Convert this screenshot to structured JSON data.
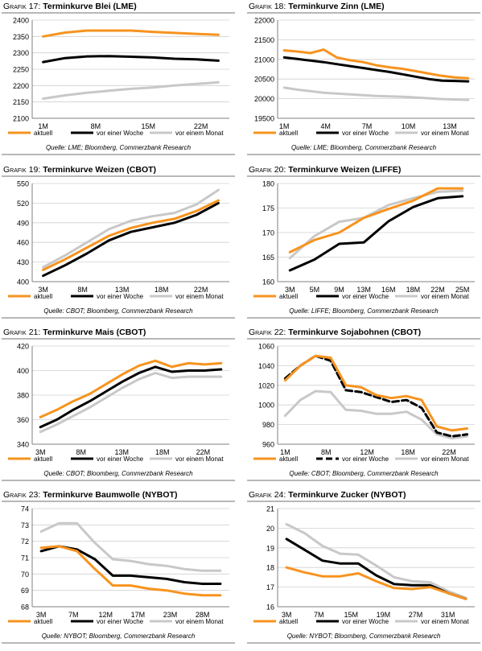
{
  "colors": {
    "aktuell": "#f7931e",
    "woche": "#000000",
    "monat": "#c8c8c8",
    "border": "#b8b8b8"
  },
  "charts": [
    {
      "prefix": "Grafik 17:",
      "title": "Terminkurve Blei (LME)",
      "source": "Quelle: LME; Bloomberg, Commerzbank Research",
      "chart_data": {
        "type": "line",
        "x_ticks": [
          "1M",
          "8M",
          "15M",
          "22M"
        ],
        "n": 9,
        "yticks": [
          2100,
          2150,
          2200,
          2250,
          2300,
          2350,
          2400
        ],
        "ylim": [
          2100,
          2400
        ],
        "series": [
          {
            "name": "aktuell",
            "style": "solid",
            "color": "#f7931e",
            "values": [
              2350,
              2362,
              2368,
              2368,
              2368,
              2364,
              2361,
              2358,
              2355
            ]
          },
          {
            "name": "vor einer Woche",
            "style": "solid",
            "color": "#000000",
            "values": [
              2272,
              2284,
              2289,
              2290,
              2288,
              2286,
              2282,
              2280,
              2276
            ]
          },
          {
            "name": "vor einem Monat",
            "style": "solid",
            "color": "#c8c8c8",
            "values": [
              2160,
              2170,
              2178,
              2184,
              2190,
              2194,
              2200,
              2205,
              2210
            ]
          }
        ]
      }
    },
    {
      "prefix": "Grafik 18:",
      "title": "Terminkurve Zinn (LME)",
      "source": "Quelle: LME; Bloomberg, Commerzbank Research",
      "chart_data": {
        "type": "line",
        "x_ticks": [
          "1M",
          "4M",
          "7M",
          "10M",
          "13M"
        ],
        "n": 15,
        "yticks": [
          19500,
          20000,
          20500,
          21000,
          21500,
          22000
        ],
        "ylim": [
          19500,
          22000
        ],
        "series": [
          {
            "name": "aktuell",
            "style": "solid",
            "color": "#f7931e",
            "values": [
              21230,
              21200,
              21160,
              21250,
              21050,
              20980,
              20930,
              20850,
              20800,
              20760,
              20700,
              20640,
              20580,
              20540,
              20520
            ]
          },
          {
            "name": "vor einer Woche",
            "style": "solid",
            "color": "#000000",
            "values": [
              21050,
              21010,
              20970,
              20930,
              20880,
              20830,
              20780,
              20730,
              20680,
              20620,
              20560,
              20500,
              20460,
              20450,
              20440
            ]
          },
          {
            "name": "vor einem Monat",
            "style": "solid",
            "color": "#c8c8c8",
            "values": [
              20280,
              20230,
              20190,
              20150,
              20130,
              20110,
              20090,
              20070,
              20060,
              20050,
              20030,
              20010,
              19990,
              19980,
              19970
            ]
          }
        ]
      }
    },
    {
      "prefix": "Grafik 19:",
      "title": "Terminkurve Weizen (CBOT)",
      "source": "Quelle: CBOT; Bloomberg, Commerzbank Research",
      "chart_data": {
        "type": "line",
        "x_ticks": [
          "3M",
          "8M",
          "13M",
          "18M",
          "22M"
        ],
        "n": 9,
        "yticks": [
          400,
          430,
          460,
          490,
          520,
          550
        ],
        "ylim": [
          400,
          550
        ],
        "series": [
          {
            "name": "aktuell",
            "style": "solid",
            "color": "#f7931e",
            "values": [
              418,
              434,
              452,
              470,
              482,
              490,
              496,
              508,
              524
            ]
          },
          {
            "name": "vor einer Woche",
            "style": "solid",
            "color": "#000000",
            "values": [
              409,
              425,
              443,
              463,
              476,
              483,
              490,
              502,
              520
            ]
          },
          {
            "name": "vor einem Monat",
            "style": "solid",
            "color": "#c8c8c8",
            "values": [
              422,
              440,
              460,
              480,
              493,
              500,
              505,
              518,
              540
            ]
          }
        ]
      }
    },
    {
      "prefix": "Grafik 20:",
      "title": "Terminkurve Weizen (LIFFE)",
      "source": "Quelle: LIFFE; Bloomberg, Commerzbank Research",
      "chart_data": {
        "type": "line",
        "x_ticks": [
          "3M",
          "5M",
          "9M",
          "13M",
          "16M",
          "18M",
          "22M",
          "25M"
        ],
        "n": 8,
        "yticks": [
          160,
          165,
          170,
          175,
          180
        ],
        "ylim": [
          160,
          180
        ],
        "series": [
          {
            "name": "aktuell",
            "style": "solid",
            "color": "#f7931e",
            "values": [
              166,
              168.5,
              170,
              173,
              174.8,
              176.5,
              179,
              179
            ]
          },
          {
            "name": "vor einer Woche",
            "style": "solid",
            "color": "#000000",
            "values": [
              162.3,
              164.5,
              167.7,
              168,
              172.3,
              175.2,
              177,
              177.4
            ]
          },
          {
            "name": "vor einem Monat",
            "style": "solid",
            "color": "#c8c8c8",
            "values": [
              164.8,
              169.3,
              172.2,
              173,
              175.6,
              177,
              178.3,
              178.5
            ]
          }
        ]
      }
    },
    {
      "prefix": "Grafik 21:",
      "title": "Terminkurve Mais (CBOT)",
      "source": "Quelle: CBOT; Bloomberg, Commerzbank Research",
      "chart_data": {
        "type": "line",
        "x_ticks": [
          "3M",
          "8M",
          "13M",
          "18M",
          "22M"
        ],
        "n": 12,
        "yticks": [
          340,
          360,
          380,
          400,
          420
        ],
        "ylim": [
          340,
          420
        ],
        "series": [
          {
            "name": "aktuell",
            "style": "solid",
            "color": "#f7931e",
            "values": [
              362,
              368,
              375,
              381,
              389,
              397,
              404,
              408,
              403,
              406,
              405,
              406
            ]
          },
          {
            "name": "vor einer Woche",
            "style": "solid",
            "color": "#000000",
            "values": [
              354,
              360,
              368,
              375,
              383,
              391,
              398,
              403,
              399,
              400,
              400,
              401
            ]
          },
          {
            "name": "vor einem Monat",
            "style": "solid",
            "color": "#c8c8c8",
            "values": [
              350,
              356,
              363,
              370,
              378,
              386,
              393,
              398,
              394,
              395,
              395,
              395
            ]
          }
        ]
      }
    },
    {
      "prefix": "Grafik 22:",
      "title": "Terminkurve Sojabohnen (CBOT)",
      "source": "Quelle: CBOT; Bloomberg, Commerzbank Research",
      "chart_data": {
        "type": "line",
        "x_ticks": [
          "1M",
          "8M",
          "12M",
          "18M",
          "22M"
        ],
        "n": 13,
        "yticks": [
          960,
          980,
          1000,
          1020,
          1040,
          1060
        ],
        "ylim": [
          960,
          1060
        ],
        "series": [
          {
            "name": "aktuell",
            "style": "solid",
            "color": "#f7931e",
            "values": [
              1025,
              1040,
              1050,
              1048,
              1020,
              1018,
              1010,
              1007,
              1009,
              1005,
              978,
              974,
              976
            ]
          },
          {
            "name": "vor einer Woche",
            "style": "dashed",
            "color": "#000000",
            "values": [
              1027,
              1040,
              1050,
              1045,
              1015,
              1013,
              1008,
              1003,
              1005,
              997,
              972,
              968,
              970
            ]
          },
          {
            "name": "vor einem Monat",
            "style": "solid",
            "color": "#c8c8c8",
            "values": [
              989,
              1005,
              1014,
              1013,
              995,
              994,
              991,
              991,
              993,
              985,
              970,
              966,
              968
            ]
          }
        ]
      }
    },
    {
      "prefix": "Grafik 23:",
      "title": "Terminkurve Baumwolle (NYBOT)",
      "source": "Quelle: NYBOT; Bloomberg, Commerzbank Research",
      "chart_data": {
        "type": "line",
        "x_ticks": [
          "3M",
          "7M",
          "12M",
          "17M",
          "23M",
          "28M"
        ],
        "n": 11,
        "yticks": [
          68,
          69,
          70,
          71,
          72,
          73,
          74
        ],
        "ylim": [
          68,
          74
        ],
        "series": [
          {
            "name": "aktuell",
            "style": "solid",
            "color": "#f7931e",
            "values": [
              71.6,
              71.7,
              71.4,
              70.3,
              69.3,
              69.3,
              69.1,
              69.0,
              68.8,
              68.7,
              68.7
            ]
          },
          {
            "name": "vor einer Woche",
            "style": "solid",
            "color": "#000000",
            "values": [
              71.4,
              71.7,
              71.5,
              70.9,
              69.9,
              69.9,
              69.8,
              69.7,
              69.5,
              69.4,
              69.4
            ]
          },
          {
            "name": "vor einem Monat",
            "style": "solid",
            "color": "#c8c8c8",
            "values": [
              72.6,
              73.1,
              73.1,
              71.9,
              70.9,
              70.8,
              70.6,
              70.5,
              70.3,
              70.2,
              70.2
            ]
          }
        ]
      }
    },
    {
      "prefix": "Grafik 24:",
      "title": "Terminkurve Zucker (NYBOT)",
      "source": "Quelle: NYBOT; Bloomberg, Commerzbank Research",
      "chart_data": {
        "type": "line",
        "x_ticks": [
          "3M",
          "7M",
          "15M",
          "19M",
          "27M",
          "31M"
        ],
        "n": 11,
        "yticks": [
          16,
          17,
          18,
          19,
          20,
          21
        ],
        "ylim": [
          16,
          21
        ],
        "series": [
          {
            "name": "aktuell",
            "style": "solid",
            "color": "#f7931e",
            "values": [
              18.0,
              17.75,
              17.55,
              17.55,
              17.7,
              17.3,
              16.95,
              16.9,
              17.0,
              16.7,
              16.4
            ]
          },
          {
            "name": "vor einer Woche",
            "style": "solid",
            "color": "#000000",
            "values": [
              19.45,
              18.9,
              18.35,
              18.2,
              18.2,
              17.6,
              17.15,
              17.1,
              17.1,
              16.7,
              16.4
            ]
          },
          {
            "name": "vor einem Monat",
            "style": "solid",
            "color": "#c8c8c8",
            "values": [
              20.2,
              19.75,
              19.1,
              18.7,
              18.65,
              18.1,
              17.5,
              17.3,
              17.25,
              16.8,
              16.45
            ]
          }
        ]
      }
    }
  ]
}
